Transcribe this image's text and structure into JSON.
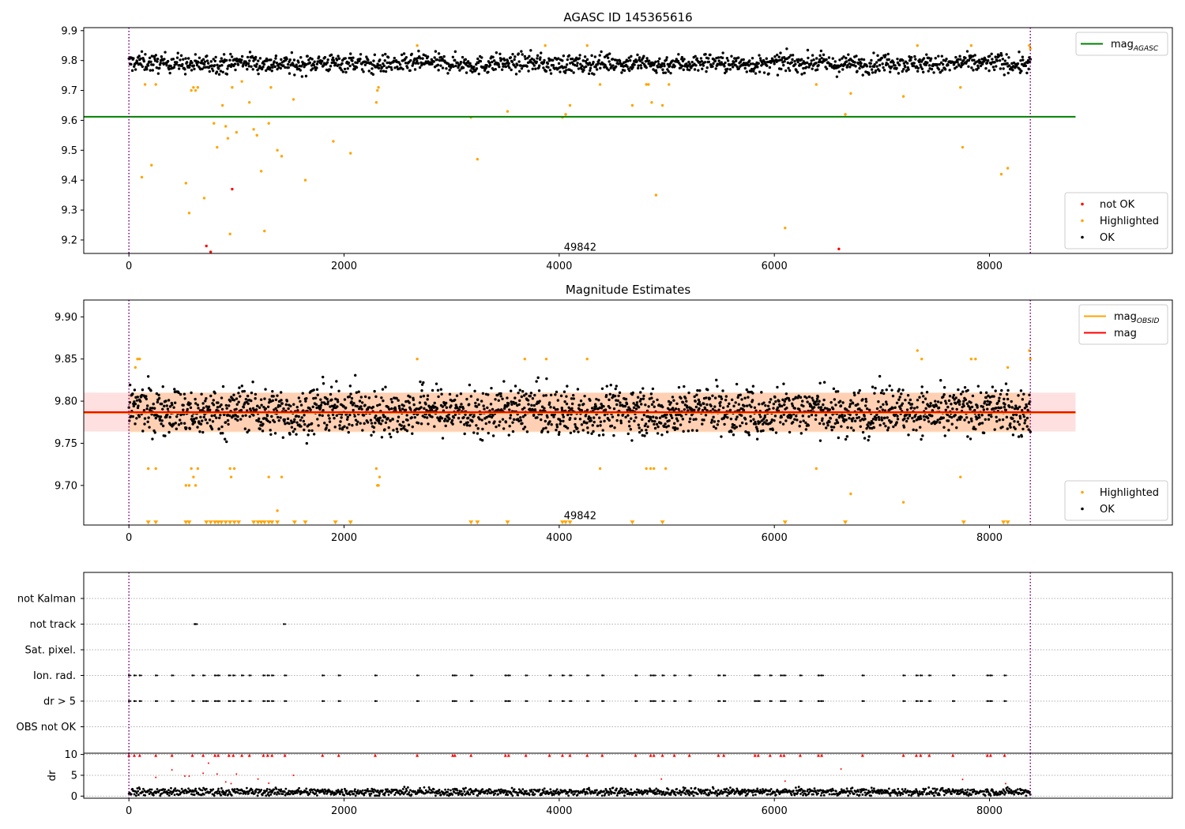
{
  "chart_data": [
    {
      "type": "scatter",
      "title": "AGASC ID 145365616",
      "xlim": [
        -420,
        9700
      ],
      "ylim": [
        9.155,
        9.91
      ],
      "xticks": [
        0,
        2000,
        4000,
        6000,
        8000
      ],
      "yticks": [
        9.2,
        9.3,
        9.4,
        9.5,
        9.6,
        9.7,
        9.8,
        9.9
      ],
      "ytick_decimals": 1,
      "obs_boundaries": [
        0,
        8380
      ],
      "annotation": {
        "text": "49842",
        "x": 4190,
        "y": 9.17
      },
      "series": [
        {
          "name": "OK",
          "color": "#000000",
          "level": 9.79,
          "spread": 0.028,
          "n": 1600,
          "band_segments": [
            [
              0,
              8380
            ]
          ]
        },
        {
          "name": "Highlighted",
          "color": "#ffa500",
          "x": [
            120,
            150,
            210,
            250,
            530,
            560,
            580,
            600,
            620,
            640,
            700,
            790,
            820,
            870,
            900,
            920,
            940,
            960,
            1000,
            1050,
            1120,
            1160,
            1190,
            1230,
            1260,
            1300,
            1320,
            1380,
            1420,
            1530,
            1640,
            1900,
            2060,
            2300,
            2310,
            2320,
            2680,
            3180,
            3240,
            3520,
            3870,
            4030,
            4060,
            4100,
            4260,
            4380,
            4680,
            4810,
            4830,
            4860,
            4900,
            4960,
            5020,
            6100,
            6390,
            6660,
            6710,
            7200,
            7330,
            7730,
            7750,
            7830,
            8110,
            8170,
            8370,
            8380
          ],
          "y": [
            9.41,
            9.72,
            9.45,
            9.72,
            9.39,
            9.29,
            9.7,
            9.71,
            9.7,
            9.71,
            9.34,
            9.59,
            9.51,
            9.65,
            9.58,
            9.54,
            9.22,
            9.71,
            9.56,
            9.73,
            9.66,
            9.57,
            9.55,
            9.43,
            9.23,
            9.59,
            9.71,
            9.5,
            9.48,
            9.67,
            9.4,
            9.53,
            9.49,
            9.66,
            9.7,
            9.71,
            9.85,
            9.61,
            9.47,
            9.63,
            9.85,
            9.61,
            9.62,
            9.65,
            9.85,
            9.72,
            9.65,
            9.72,
            9.72,
            9.66,
            9.35,
            9.65,
            9.72,
            9.24,
            9.72,
            9.62,
            9.69,
            9.68,
            9.85,
            9.71,
            9.51,
            9.85,
            9.42,
            9.44,
            9.85,
            9.84
          ]
        },
        {
          "name": "not OK",
          "color": "#ff0000",
          "x": [
            720,
            760,
            960,
            6600
          ],
          "y": [
            9.18,
            9.16,
            9.37,
            9.17
          ]
        }
      ],
      "hlines": [
        {
          "name": "mag_AGASC",
          "y": 9.612,
          "x": [
            -420,
            8800
          ],
          "color": "#008000"
        }
      ],
      "legends": [
        {
          "placement": "top-right",
          "items": [
            {
              "kind": "line",
              "color": "#008000",
              "label": "mag",
              "sub": "AGASC"
            }
          ]
        },
        {
          "placement": "bottom-right",
          "items": [
            {
              "kind": "dot",
              "color": "#ff0000",
              "label": "not OK"
            },
            {
              "kind": "dot",
              "color": "#ffa500",
              "label": "Highlighted"
            },
            {
              "kind": "dot",
              "color": "#000000",
              "label": "OK"
            }
          ]
        }
      ]
    },
    {
      "type": "scatter",
      "title": "Magnitude Estimates",
      "xlim": [
        -420,
        9700
      ],
      "ylim": [
        9.653,
        9.92
      ],
      "xticks": [
        0,
        2000,
        4000,
        6000,
        8000
      ],
      "yticks": [
        9.7,
        9.75,
        9.8,
        9.85,
        9.9
      ],
      "ytick_decimals": 2,
      "obs_boundaries": [
        0,
        8380
      ],
      "annotation": {
        "text": "49842",
        "x": 4190,
        "y": 9.662
      },
      "series": [
        {
          "name": "OK",
          "color": "#000000",
          "level": 9.788,
          "spread": 0.025,
          "n": 2200,
          "band_segments": [
            [
              0,
              8380
            ]
          ]
        },
        {
          "name": "Highlighted",
          "color": "#ffa500",
          "x": [
            60,
            80,
            100,
            180,
            250,
            530,
            560,
            580,
            600,
            620,
            640,
            940,
            950,
            980,
            1300,
            1380,
            1420,
            2300,
            2310,
            2320,
            2330,
            2680,
            3680,
            3880,
            4260,
            4380,
            4810,
            4850,
            4880,
            4990,
            6390,
            6710,
            7200,
            7330,
            7370,
            7730,
            7830,
            7870,
            8170,
            8370,
            8380
          ],
          "y": [
            9.84,
            9.85,
            9.85,
            9.72,
            9.72,
            9.7,
            9.7,
            9.72,
            9.71,
            9.7,
            9.72,
            9.72,
            9.71,
            9.72,
            9.71,
            9.67,
            9.71,
            9.72,
            9.7,
            9.7,
            9.71,
            9.85,
            9.85,
            9.85,
            9.85,
            9.72,
            9.72,
            9.72,
            9.72,
            9.72,
            9.72,
            9.69,
            9.68,
            9.86,
            9.85,
            9.71,
            9.85,
            9.85,
            9.84,
            9.86,
            9.85
          ]
        },
        {
          "name": "Highlighted_low",
          "color": "#ffa500",
          "marker": "triangle-down",
          "x": [
            180,
            250,
            530,
            560,
            720,
            760,
            800,
            830,
            860,
            900,
            940,
            980,
            1020,
            1160,
            1200,
            1230,
            1260,
            1300,
            1330,
            1380,
            1540,
            1640,
            1920,
            2060,
            3180,
            3240,
            3520,
            4030,
            4060,
            4100,
            4680,
            4960,
            6100,
            6660,
            7760,
            8130,
            8170
          ],
          "y": [
            9.656,
            9.656,
            9.656,
            9.656,
            9.656,
            9.656,
            9.656,
            9.656,
            9.656,
            9.656,
            9.656,
            9.656,
            9.656,
            9.656,
            9.656,
            9.656,
            9.656,
            9.656,
            9.656,
            9.656,
            9.656,
            9.656,
            9.656,
            9.656,
            9.656,
            9.656,
            9.656,
            9.656,
            9.656,
            9.656,
            9.656,
            9.656,
            9.656,
            9.656,
            9.656,
            9.656,
            9.656
          ]
        }
      ],
      "hlines": [
        {
          "name": "mag_OBSID",
          "y": 9.786,
          "x": [
            -420,
            8800
          ],
          "color": "#ffa500"
        },
        {
          "name": "mag",
          "y": 9.787,
          "x": [
            -420,
            8800
          ],
          "color": "#ff0000"
        }
      ],
      "bands": [
        {
          "name": "mag_OBSID",
          "y": [
            9.763,
            9.81
          ],
          "x": [
            0,
            8380
          ],
          "color": "#ffa500",
          "opacity": 0.2
        },
        {
          "name": "mag",
          "y": [
            9.764,
            9.81
          ],
          "x": [
            -420,
            8800
          ],
          "color": "#ff0000",
          "opacity": 0.12
        }
      ],
      "legends": [
        {
          "placement": "top-right",
          "items": [
            {
              "kind": "line",
              "color": "#ffa500",
              "label": "mag",
              "sub": "OBSID"
            },
            {
              "kind": "line",
              "color": "#ff0000",
              "label": "mag"
            }
          ]
        },
        {
          "placement": "bottom-right",
          "items": [
            {
              "kind": "dot",
              "color": "#ffa500",
              "label": "Highlighted"
            },
            {
              "kind": "dot",
              "color": "#000000",
              "label": "OK"
            }
          ]
        }
      ]
    },
    {
      "type": "scatter",
      "xlim": [
        -420,
        9700
      ],
      "xticks": [
        0,
        2000,
        4000,
        6000,
        8000
      ],
      "obs_boundaries": [
        0,
        8380
      ],
      "flag_categories": [
        "not Kalman",
        "not track",
        "Sat. pixel.",
        "Ion. rad.",
        "dr > 5",
        "OBS not OK"
      ],
      "flag_events": {
        "not track": [
          610,
          620,
          1440
        ],
        "Ion. rad.": [
          0,
          50,
          100,
          250,
          400,
          590,
          690,
          800,
          830,
          930,
          970,
          1050,
          1120,
          1250,
          1290,
          1330,
          1450,
          1800,
          1950,
          2290,
          2680,
          3010,
          3030,
          3180,
          3500,
          3530,
          3690,
          3910,
          4030,
          4100,
          4260,
          4400,
          4710,
          4850,
          4880,
          4960,
          5070,
          5210,
          5480,
          5530,
          5820,
          5850,
          5960,
          6060,
          6090,
          6240,
          6410,
          6440,
          6820,
          7200,
          7320,
          7360,
          7440,
          7660,
          7980,
          8010,
          8140
        ],
        "dr > 5": [
          0,
          50,
          100,
          250,
          400,
          590,
          690,
          720,
          800,
          830,
          930,
          970,
          1050,
          1120,
          1250,
          1290,
          1330,
          1450,
          1800,
          1950,
          2290,
          2680,
          3010,
          3030,
          3180,
          3500,
          3530,
          3690,
          3910,
          4030,
          4100,
          4260,
          4400,
          4710,
          4850,
          4880,
          4960,
          5070,
          5210,
          5480,
          5530,
          5820,
          5850,
          5960,
          6060,
          6090,
          6240,
          6410,
          6440,
          6820,
          7200,
          7320,
          7360,
          7440,
          7660,
          7980,
          8010,
          8140
        ]
      }
    },
    {
      "type": "scatter",
      "ylabel": "dr",
      "xlim": [
        -420,
        9700
      ],
      "ylim": [
        -0.5,
        10.3
      ],
      "xticks": [
        0,
        2000,
        4000,
        6000,
        8000
      ],
      "yticks": [
        0,
        5,
        10
      ],
      "obs_boundaries": [
        0,
        8380
      ],
      "series": [
        {
          "name": "OK",
          "color": "#000000",
          "level": 1.0,
          "spread": 0.45,
          "n": 1500,
          "band_segments": [
            [
              0,
              8380
            ]
          ]
        },
        {
          "name": "dr > 5",
          "color": "#ff0000",
          "marker": "triangle-up",
          "x": [
            0,
            50,
            100,
            250,
            400,
            590,
            690,
            800,
            830,
            930,
            970,
            1050,
            1120,
            1250,
            1290,
            1330,
            1450,
            1800,
            1950,
            2290,
            2680,
            3010,
            3030,
            3180,
            3500,
            3530,
            3690,
            3910,
            4030,
            4100,
            4260,
            4400,
            4710,
            4850,
            4880,
            4960,
            5070,
            5210,
            5480,
            5530,
            5820,
            5850,
            5960,
            6060,
            6090,
            6240,
            6410,
            6440,
            6820,
            7200,
            7320,
            7360,
            7440,
            7660,
            7980,
            8010,
            8140
          ],
          "y": [
            9.8,
            9.8,
            9.8,
            9.8,
            9.8,
            9.8,
            9.8,
            9.8,
            9.8,
            9.8,
            9.8,
            9.8,
            9.8,
            9.8,
            9.8,
            9.8,
            9.8,
            9.8,
            9.8,
            9.8,
            9.8,
            9.8,
            9.8,
            9.8,
            9.8,
            9.8,
            9.8,
            9.8,
            9.8,
            9.8,
            9.8,
            9.8,
            9.8,
            9.8,
            9.8,
            9.8,
            9.8,
            9.8,
            9.8,
            9.8,
            9.8,
            9.8,
            9.8,
            9.8,
            9.8,
            9.8,
            9.8,
            9.8,
            9.8,
            9.8,
            9.8,
            9.8,
            9.8,
            9.8,
            9.8,
            9.8,
            9.8
          ]
        },
        {
          "name": "red_points",
          "color": "#ff0000",
          "x": [
            250,
            400,
            520,
            560,
            690,
            740,
            820,
            900,
            950,
            1000,
            1200,
            1300,
            1530,
            4950,
            6100,
            6620,
            7750,
            8150
          ],
          "y": [
            4.5,
            6.3,
            4.8,
            4.8,
            5.5,
            7.9,
            5.3,
            3.4,
            3.0,
            5.3,
            4.1,
            3.1,
            5.0,
            4.1,
            3.6,
            6.5,
            4.0,
            3.0
          ]
        }
      ]
    }
  ]
}
